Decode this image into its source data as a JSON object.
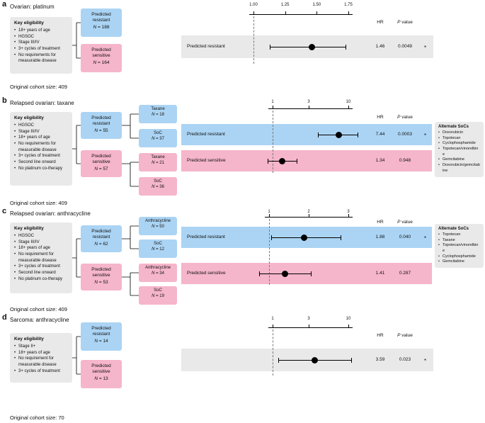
{
  "panels": [
    {
      "id": "a",
      "label": "a",
      "title": "Ovarian: platinum",
      "eligibility_title": "Key eligibility",
      "eligibility": [
        "18+ years of age",
        "HGSOC",
        "Stage III/IV",
        "3+ cycles of treatment",
        "No requirements for measurable disease"
      ],
      "arms": [
        {
          "name": "Predicted resistant",
          "n": "N = 188"
        },
        {
          "name": "Predicted sensitive",
          "n": "N = 164"
        }
      ],
      "cohort": "Original cohort size: 409"
    },
    {
      "id": "b",
      "label": "b",
      "title": "Relapsed ovarian: taxane",
      "eligibility_title": "Key eligibility",
      "eligibility": [
        "HGSOC",
        "Stage III/IV",
        "18+ years of age",
        "No requirements for measurable disease",
        "3+ cycles of treatment",
        "Second line onward",
        "No platinum co-therapy"
      ],
      "arms": [
        {
          "name": "Predicted resistant",
          "n": "N = 55"
        },
        {
          "name": "Predicted sensitive",
          "n": "N = 57"
        }
      ],
      "subgroups": [
        {
          "name": "Taxane",
          "n": "N = 18"
        },
        {
          "name": "SoC",
          "n": "N = 37"
        },
        {
          "name": "Taxane",
          "n": "N = 21"
        },
        {
          "name": "SoC",
          "n": "N = 36"
        }
      ],
      "alt_soc_title": "Alternate SoCs",
      "alt_soc": [
        "Doxorubicin",
        "Topotecan",
        "Cyclophosphamide",
        "Topotecan/vinorelbine",
        "Gemcitabine",
        "Doxorubicin/gemcitabine"
      ],
      "cohort": "Original cohort size: 409"
    },
    {
      "id": "c",
      "label": "c",
      "title": "Relapsed ovarian: anthracycline",
      "eligibility_title": "Key eligibility",
      "eligibility": [
        "HGSOC",
        "Stage III/IV",
        "18+ years of age",
        "No requirement for measurable disease",
        "3+ cycles of treatment",
        "Second line onward",
        "No platinum co-therapy"
      ],
      "arms": [
        {
          "name": "Predicted resistant",
          "n": "N = 62"
        },
        {
          "name": "Predicted sensitive",
          "n": "N = 53"
        }
      ],
      "subgroups": [
        {
          "name": "Anthracycline",
          "n": "N = 50"
        },
        {
          "name": "SoC",
          "n": "N = 12"
        },
        {
          "name": "Anthracycline",
          "n": "N = 34"
        },
        {
          "name": "SoC",
          "n": "N = 19"
        }
      ],
      "alt_soc_title": "Alternate SoCs",
      "alt_soc": [
        "Topotecan",
        "Taxane",
        "Topotecan/vinorelbine",
        "Cyclophosphamide",
        "Gemcitabine"
      ],
      "cohort": "Original cohort size: 409"
    },
    {
      "id": "d",
      "label": "d",
      "title": "Sarcoma: anthracycline",
      "eligibility_title": "Key eligibility",
      "eligibility": [
        "Stage II+",
        "18+ years of age",
        "No requirement for measurable disease",
        "3+ cycles of treatment"
      ],
      "arms": [
        {
          "name": "Predicted resistant",
          "n": "N = 14"
        },
        {
          "name": "Predicted sensitive",
          "n": "N = 13"
        }
      ],
      "cohort": "Original cohort size: 70"
    }
  ],
  "chart_data": [
    {
      "panel": "a",
      "type": "forest",
      "scale": "linear",
      "domain": [
        1.0,
        1.75
      ],
      "ticks": [
        {
          "value": 1.0,
          "label": "1.00"
        },
        {
          "value": 1.25,
          "label": "1.25"
        },
        {
          "value": 1.5,
          "label": "1.50"
        },
        {
          "value": 1.75,
          "label": "1.75"
        }
      ],
      "reference": 1.0,
      "columns": {
        "hr": "HR",
        "p": "P value"
      },
      "rows": [
        {
          "label": "Predicted resistant",
          "band": "gray",
          "hr": 1.46,
          "ci": [
            1.13,
            1.73
          ],
          "hr_text": "1.46",
          "p_text": "0.0049",
          "sig": "*"
        }
      ]
    },
    {
      "panel": "b",
      "type": "forest",
      "scale": "log",
      "domain": [
        1,
        10
      ],
      "ticks": [
        {
          "value": 1,
          "label": "1"
        },
        {
          "value": 3,
          "label": "3"
        },
        {
          "value": 10,
          "label": "10"
        }
      ],
      "reference": 1,
      "columns": {
        "hr": "HR",
        "p": "P value"
      },
      "rows": [
        {
          "label": "Predicted resistant",
          "band": "blue",
          "hr": 7.44,
          "ci": [
            4.0,
            13.2
          ],
          "hr_text": "7.44",
          "p_text": "0.0003",
          "sig": "*"
        },
        {
          "label": "Predicted sensitive",
          "band": "pink",
          "hr": 1.34,
          "ci": [
            0.86,
            2.1
          ],
          "hr_text": "1.34",
          "p_text": "0.948",
          "sig": ""
        }
      ]
    },
    {
      "panel": "c",
      "type": "forest",
      "scale": "linear",
      "domain": [
        1,
        3
      ],
      "ticks": [
        {
          "value": 1,
          "label": "1"
        },
        {
          "value": 2,
          "label": "2"
        },
        {
          "value": 3,
          "label": "3"
        }
      ],
      "reference": 1,
      "columns": {
        "hr": "HR",
        "p": "P value"
      },
      "rows": [
        {
          "label": "Predicted resistant",
          "band": "blue",
          "hr": 1.88,
          "ci": [
            1.05,
            2.8
          ],
          "hr_text": "1.88",
          "p_text": "0.040",
          "sig": "*"
        },
        {
          "label": "Predicted sensitive",
          "band": "pink",
          "hr": 1.41,
          "ci": [
            0.75,
            2.05
          ],
          "hr_text": "1.41",
          "p_text": "0.287",
          "sig": ""
        }
      ]
    },
    {
      "panel": "d",
      "type": "forest",
      "scale": "log",
      "domain": [
        1,
        10
      ],
      "ticks": [
        {
          "value": 1,
          "label": "1"
        },
        {
          "value": 3,
          "label": "3"
        },
        {
          "value": 10,
          "label": "10"
        }
      ],
      "reference": 1,
      "columns": {
        "hr": "HR",
        "p": "P value"
      },
      "rows": [
        {
          "label": "",
          "band": "gray",
          "hr": 3.59,
          "ci": [
            1.18,
            10.9
          ],
          "hr_text": "3.59",
          "p_text": "0.023",
          "sig": "*"
        }
      ]
    }
  ]
}
